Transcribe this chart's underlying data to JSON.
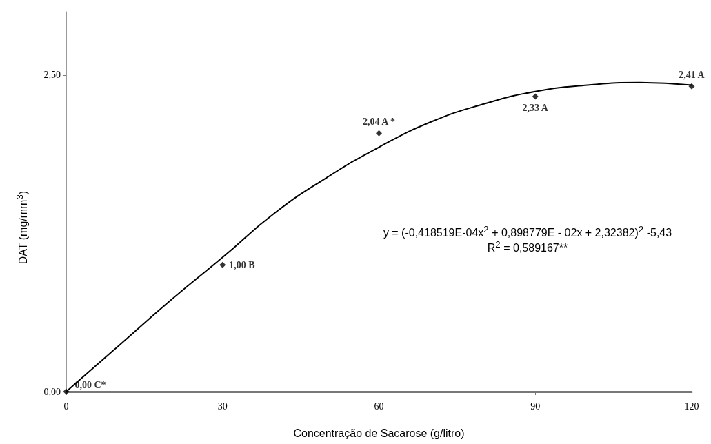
{
  "chart_data": {
    "type": "scatter",
    "xlabel": "Concentração de Sacarose (g/litro)",
    "ylabel": "DAT (mg/mm$^{3}$)",
    "xlim": [
      0,
      120
    ],
    "xticks": [
      0,
      30,
      60,
      90,
      120
    ],
    "ylim": [
      0,
      3
    ],
    "yticks": [
      {
        "value": 0,
        "label": "0,00"
      },
      {
        "value": 2.5,
        "label": "2,50"
      }
    ],
    "grid": false,
    "marker": "diamond",
    "series": [
      {
        "type": "scatter",
        "color": "#000000",
        "x": [
          0,
          30,
          60,
          90,
          120
        ],
        "values": [
          0,
          1.0,
          2.04,
          2.33,
          2.41
        ],
        "value_labels": [
          "0,00 C*",
          "1,00 B",
          "2,04 A *",
          "2,33 A",
          "2,41 A"
        ]
      },
      {
        "type": "line",
        "color": "#000000",
        "marker": "none",
        "line_style": "solid",
        "x": [
          0,
          10,
          20,
          30,
          40,
          50,
          60,
          70,
          80,
          90,
          100,
          110,
          120
        ],
        "values": [
          0,
          0.36,
          0.72,
          1.06,
          1.41,
          1.69,
          1.93,
          2.13,
          2.27,
          2.37,
          2.42,
          2.44,
          2.42
        ]
      }
    ],
    "annotations": [
      "y = (-0,418519E-04x$^{2}$ + 0,898779E - 02x + 2,32382)$^{2}$ -5,43",
      "R$^{2}$ = 0,589167**"
    ]
  }
}
